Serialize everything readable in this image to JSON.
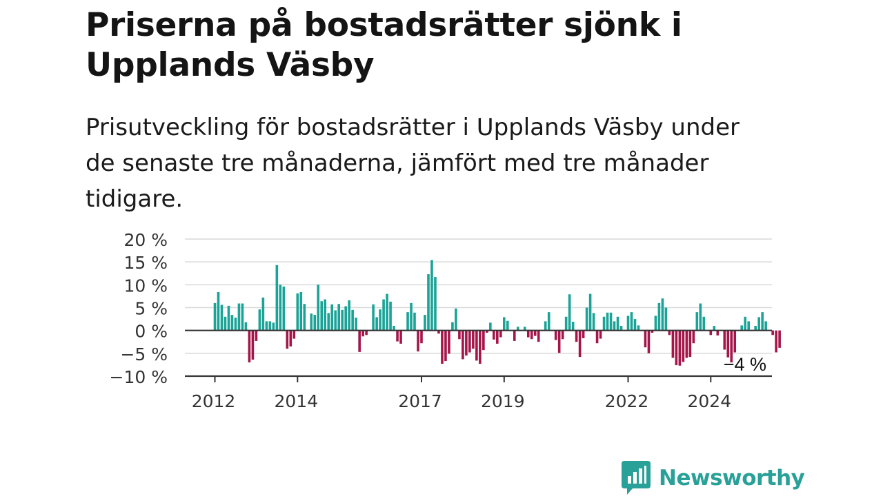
{
  "title": "Priserna på bostadsrätter sjönk i Upplands Väsby",
  "subtitle": "Prisutveckling för bostadsrätter i Upplands Väsby under de senaste tre månaderna, jämfört med tre månader tidigare.",
  "brand": {
    "name": "Newsworthy"
  },
  "colors": {
    "positive": "#1aa396",
    "negative": "#a5154a",
    "brand": "#2aa198",
    "grid": "#d9d9d9",
    "axis": "#333333"
  },
  "chart_data": {
    "type": "bar",
    "title": "",
    "xlabel": "",
    "ylabel": "",
    "ylim": [
      -10,
      20
    ],
    "y_ticks": [
      {
        "value": 20,
        "label": "20 %"
      },
      {
        "value": 15,
        "label": "15 %"
      },
      {
        "value": 10,
        "label": "10 %"
      },
      {
        "value": 5,
        "label": "5 %"
      },
      {
        "value": 0,
        "label": "0 %"
      },
      {
        "value": -5,
        "label": "−5 %"
      },
      {
        "value": -10,
        "label": "−10 %"
      }
    ],
    "x_ticks": [
      {
        "year": 2012,
        "label": "2012"
      },
      {
        "year": 2014,
        "label": "2014"
      },
      {
        "year": 2017,
        "label": "2017"
      },
      {
        "year": 2019,
        "label": "2019"
      },
      {
        "year": 2022,
        "label": "2022"
      },
      {
        "year": 2024,
        "label": "2024"
      }
    ],
    "grid": true,
    "start_month": "2012-01",
    "series": [
      {
        "values": [
          6.0,
          8.4,
          5.6,
          3.0,
          5.4,
          3.4,
          2.8,
          5.9,
          5.9,
          1.8,
          -7.0,
          -6.4,
          -2.3,
          4.6,
          7.2,
          2.0,
          2.0,
          1.7,
          14.3,
          10.0,
          9.6,
          -4.0,
          -3.5,
          -1.8,
          8.1,
          8.4,
          5.8,
          0,
          3.7,
          3.4,
          10.0,
          6.4,
          6.8,
          3.8,
          5.7,
          4.4,
          5.8,
          4.5,
          5.3,
          6.6,
          4.5,
          2.8,
          -4.7,
          -1.3,
          -1.0,
          0,
          5.7,
          2.9,
          4.6,
          6.8,
          8.0,
          6.3,
          1.0,
          -2.4,
          -2.9,
          0,
          4.0,
          6.0,
          3.9,
          -4.6,
          -2.8,
          3.4,
          12.3,
          15.4,
          11.7,
          -0.7,
          -7.3,
          -6.7,
          -5.1,
          1.8,
          4.8,
          -1.9,
          -6.3,
          -5.5,
          -4.8,
          -4.0,
          -6.6,
          -7.3,
          -4.3,
          -0.5,
          1.7,
          -2.0,
          -2.9,
          -1.5,
          2.9,
          2.1,
          0,
          -2.3,
          0.8,
          0,
          0.8,
          -1.5,
          -1.9,
          -1.2,
          -2.5,
          0,
          2.0,
          4.0,
          0,
          -2.1,
          -4.9,
          -1.9,
          3.0,
          7.9,
          1.9,
          -2.5,
          -5.8,
          -1.7,
          5.0,
          8.0,
          3.8,
          -2.8,
          -1.8,
          3.0,
          3.9,
          3.9,
          2.0,
          3.0,
          1.0,
          0,
          3.2,
          4.0,
          2.5,
          1.1,
          0,
          -3.7,
          -5.0,
          -0.5,
          3.2,
          6.0,
          7.0,
          5.0,
          -1.0,
          -6.0,
          -7.6,
          -7.7,
          -6.9,
          -6.0,
          -5.8,
          -2.8,
          4.0,
          5.9,
          3.0,
          0,
          -1.0,
          1.0,
          -1.1,
          0,
          -4.2,
          -5.9,
          -7.0,
          -4.8,
          0,
          1.1,
          3.0,
          2.0,
          0,
          1.0,
          2.9,
          4.0,
          2.0,
          0,
          -1.0,
          -4.8,
          -3.8
        ]
      }
    ],
    "annotation": {
      "label": "−4 %",
      "value": -4
    }
  }
}
